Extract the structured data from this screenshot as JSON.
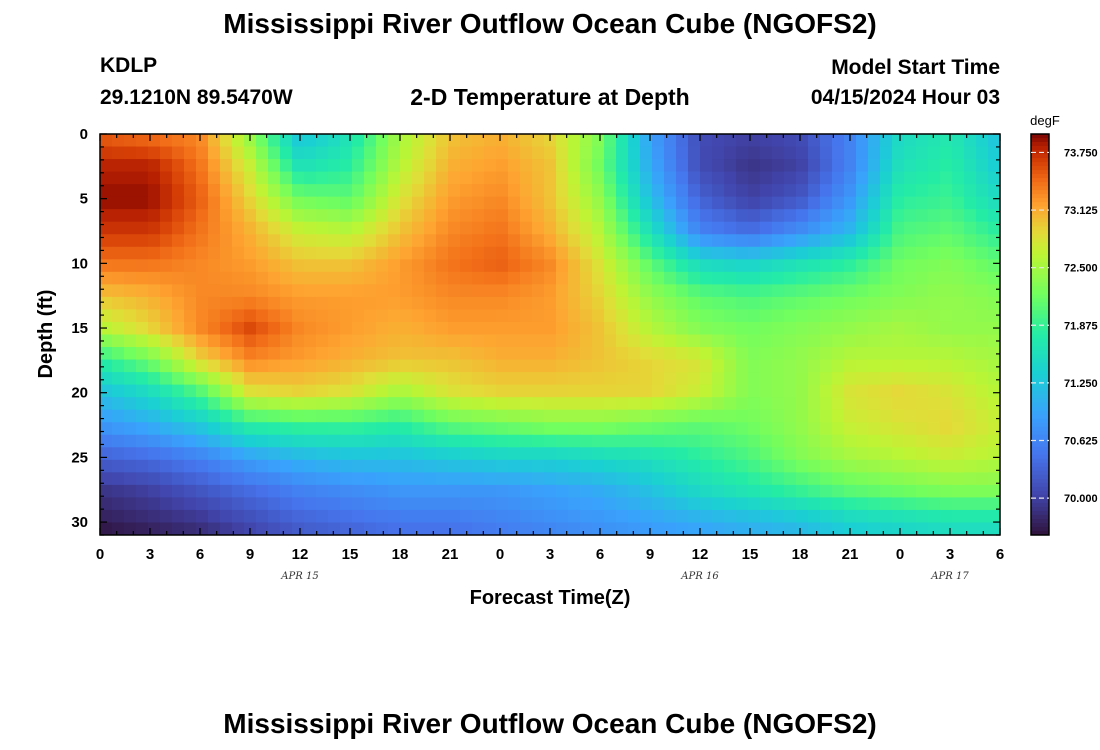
{
  "header": {
    "title": "Mississippi River Outflow Ocean Cube (NGOFS2)",
    "station": "KDLP",
    "coords": "29.1210N  89.5470W",
    "plot_title": "2-D Temperature at Depth",
    "start_label": "Model Start Time",
    "start_value": "04/15/2024 Hour 03"
  },
  "footer": {
    "title": "Mississippi River Outflow Ocean Cube (NGOFS2)"
  },
  "chart_data": {
    "type": "heatmap",
    "title": "2-D Temperature at Depth",
    "xlabel": "Forecast Time(Z)",
    "ylabel": "Depth (ft)",
    "x_unit": "hours since 04/15 00Z",
    "xlim": [
      0,
      54
    ],
    "ylim": [
      31,
      0
    ],
    "x_tick_values": [
      0,
      3,
      6,
      9,
      12,
      15,
      18,
      21,
      24,
      27,
      30,
      33,
      36,
      39,
      42,
      45,
      48,
      51,
      54
    ],
    "x_tick_labels": [
      "0",
      "3",
      "6",
      "9",
      "12",
      "15",
      "18",
      "21",
      "0",
      "3",
      "6",
      "9",
      "12",
      "15",
      "18",
      "21",
      "0",
      "3",
      "6"
    ],
    "y_ticks": [
      0,
      5,
      10,
      15,
      20,
      25,
      30
    ],
    "date_labels": [
      {
        "text": "APR 15",
        "x": 12
      },
      {
        "text": "APR 16",
        "x": 36
      },
      {
        "text": "APR 17",
        "x": 51
      }
    ],
    "colorbar": {
      "unit": "degF",
      "min": 69.6,
      "max": 73.95,
      "ticks": [
        73.75,
        73.125,
        72.5,
        71.875,
        71.25,
        70.625,
        70.0
      ],
      "tick_labels": [
        "73.750",
        "73.125",
        "72.500",
        "71.875",
        "71.250",
        "70.625",
        "70.000"
      ]
    },
    "grid_x": [
      0,
      3,
      6,
      9,
      12,
      15,
      18,
      21,
      24,
      27,
      30,
      33,
      36,
      39,
      42,
      45,
      48,
      51,
      54
    ],
    "grid_depth": [
      0,
      2.5,
      5,
      7.5,
      10,
      12.5,
      15,
      17.5,
      20,
      22.5,
      25,
      27.5,
      30,
      31
    ],
    "temperature": [
      [
        73.5,
        73.4,
        73.3,
        72.4,
        71.2,
        71.6,
        72.5,
        73.0,
        73.1,
        72.9,
        72.3,
        70.9,
        70.1,
        70.0,
        70.1,
        70.6,
        71.5,
        71.7,
        71.2
      ],
      [
        73.8,
        73.8,
        73.4,
        72.7,
        71.6,
        71.8,
        72.6,
        73.1,
        73.2,
        73.0,
        72.2,
        71.0,
        70.1,
        69.9,
        70.0,
        70.6,
        71.6,
        71.8,
        71.3
      ],
      [
        73.9,
        73.9,
        73.5,
        72.9,
        72.2,
        72.1,
        72.8,
        73.2,
        73.3,
        73.0,
        72.4,
        71.2,
        70.3,
        70.0,
        70.2,
        70.8,
        71.8,
        71.9,
        71.5
      ],
      [
        73.7,
        73.7,
        73.4,
        73.1,
        72.7,
        72.6,
        73.0,
        73.3,
        73.4,
        73.1,
        72.6,
        71.6,
        70.6,
        70.4,
        70.7,
        71.1,
        72.0,
        72.1,
        71.8
      ],
      [
        73.4,
        73.4,
        73.3,
        73.2,
        73.0,
        73.0,
        73.2,
        73.4,
        73.5,
        73.3,
        72.8,
        72.1,
        71.5,
        71.4,
        71.6,
        71.8,
        72.2,
        72.3,
        72.1
      ],
      [
        73.0,
        73.1,
        73.3,
        73.3,
        73.2,
        73.2,
        73.2,
        73.3,
        73.3,
        73.2,
        72.9,
        72.4,
        72.1,
        72.0,
        72.1,
        72.2,
        72.3,
        72.4,
        72.3
      ],
      [
        72.6,
        72.9,
        73.3,
        73.6,
        73.3,
        73.2,
        73.1,
        73.2,
        73.2,
        73.2,
        73.0,
        72.6,
        72.3,
        72.2,
        72.3,
        72.4,
        72.5,
        72.4,
        72.4
      ],
      [
        71.8,
        72.2,
        72.9,
        73.3,
        73.2,
        73.1,
        73.0,
        73.0,
        73.1,
        73.1,
        73.0,
        72.9,
        72.8,
        72.3,
        72.4,
        72.6,
        72.6,
        72.6,
        72.5
      ],
      [
        71.2,
        71.5,
        72.0,
        72.8,
        72.9,
        72.8,
        72.5,
        72.8,
        72.9,
        72.9,
        72.9,
        72.9,
        72.7,
        72.3,
        72.4,
        72.8,
        72.9,
        72.8,
        72.6
      ],
      [
        70.8,
        71.0,
        71.3,
        71.8,
        71.9,
        71.9,
        71.8,
        72.1,
        72.2,
        72.3,
        72.3,
        72.2,
        72.1,
        72.2,
        72.4,
        72.7,
        72.8,
        72.9,
        72.7
      ],
      [
        70.3,
        70.4,
        70.6,
        70.9,
        71.1,
        71.2,
        71.2,
        71.3,
        71.4,
        71.4,
        71.5,
        71.6,
        71.8,
        72.0,
        72.3,
        72.5,
        72.6,
        72.7,
        72.6
      ],
      [
        69.9,
        70.0,
        70.2,
        70.4,
        70.6,
        70.7,
        70.8,
        70.8,
        70.8,
        70.9,
        71.0,
        71.2,
        71.5,
        71.7,
        71.9,
        72.1,
        72.2,
        72.3,
        72.3
      ],
      [
        69.7,
        69.8,
        69.9,
        70.1,
        70.3,
        70.4,
        70.5,
        70.5,
        70.6,
        70.7,
        70.8,
        70.9,
        71.0,
        71.1,
        71.2,
        71.4,
        71.5,
        71.6,
        71.6
      ],
      [
        69.6,
        69.7,
        69.8,
        70.0,
        70.2,
        70.3,
        70.4,
        70.4,
        70.5,
        70.6,
        70.7,
        70.8,
        70.9,
        71.0,
        71.1,
        71.3,
        71.4,
        71.5,
        71.5
      ]
    ]
  }
}
